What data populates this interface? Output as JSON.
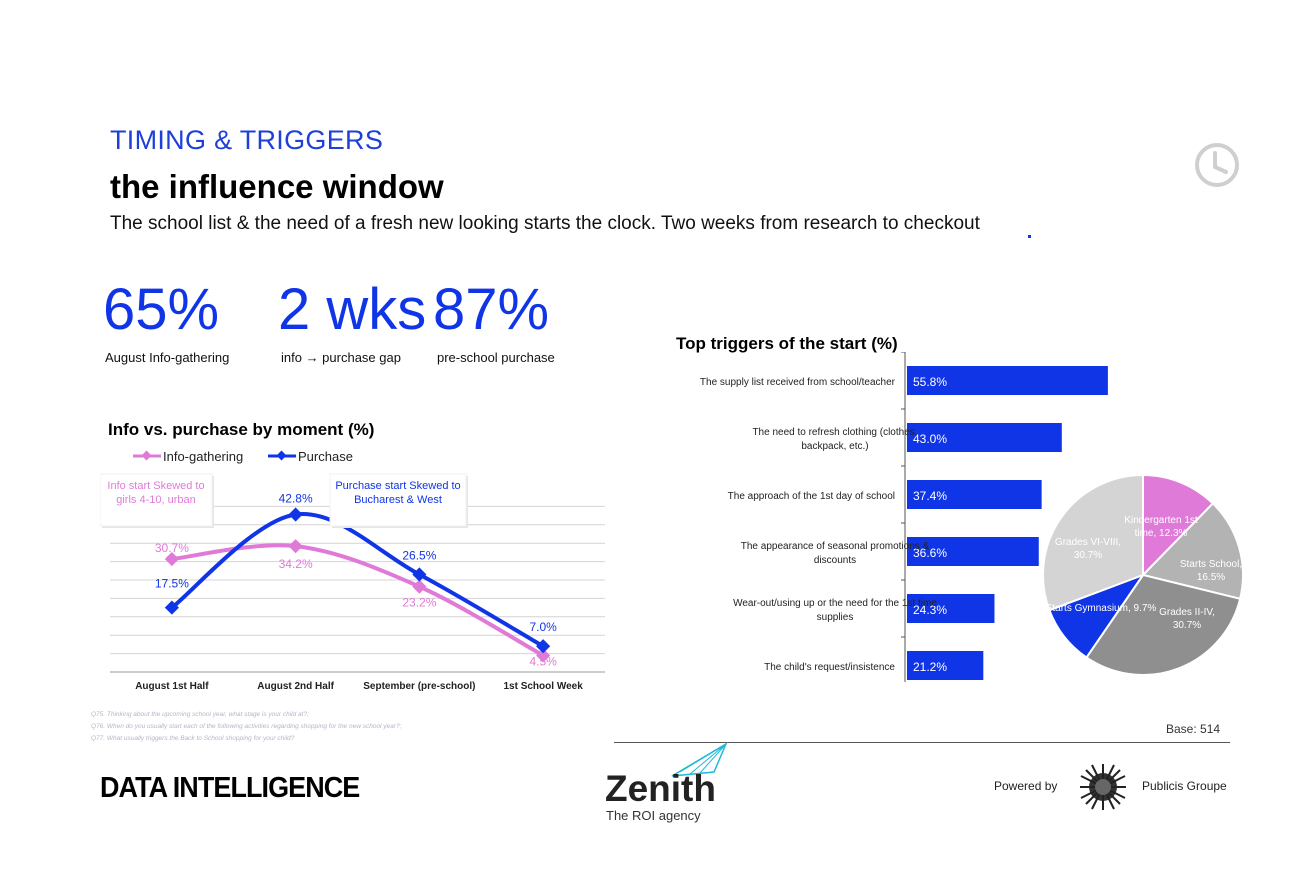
{
  "header": {
    "kicker": "TIMING & TRIGGERS",
    "title": "the influence window",
    "subtitle": "The school list & the need of a fresh new looking starts the clock. Two weeks from research to checkout",
    "clock_icon": "clock-icon",
    "accent_color": "#1e3fd8"
  },
  "kpis": [
    {
      "value": "65%",
      "label": "August Info-gathering"
    },
    {
      "value": "2 wks",
      "label": "info → purchase gap"
    },
    {
      "value": "87%",
      "label": "pre-school purchase"
    }
  ],
  "line_annotations": [
    "Info start Skewed to girls 4-10, urban",
    "Purchase start Skewed to Bucharest & West"
  ],
  "chart_data": [
    {
      "type": "line",
      "title": "Info vs. purchase by moment (%)",
      "categories": [
        "August 1st Half",
        "August 2nd Half",
        "September (pre-school)",
        "1st School Week"
      ],
      "series": [
        {
          "name": "Info-gathering",
          "color": "#e07ad9",
          "values": [
            30.7,
            34.2,
            23.2,
            4.5
          ],
          "labels": [
            "30.7%",
            "34.2%",
            "23.2%",
            "4.5%"
          ]
        },
        {
          "name": "Purchase",
          "color": "#1035e6",
          "values": [
            17.5,
            42.8,
            26.5,
            7.0
          ],
          "labels": [
            "17.5%",
            "42.8%",
            "26.5%",
            "7.0%"
          ]
        }
      ],
      "ylim": [
        0,
        50
      ],
      "grid": true,
      "legend": "top-left"
    },
    {
      "type": "bar",
      "orientation": "horizontal",
      "title": "Top triggers of the start (%)",
      "categories": [
        "The supply list received from school/teacher",
        "The need to refresh clothing (clothes, backpack, etc.)",
        "The approach of the 1st day of school",
        "The appearance of seasonal promotions & discounts",
        "Wear-out/using up or the need for the 1st time supplies",
        "The child's request/insistence"
      ],
      "values": [
        55.8,
        43.0,
        37.4,
        36.6,
        24.3,
        21.2
      ],
      "labels": [
        "55.8%",
        "43.0%",
        "37.4%",
        "36.6%",
        "24.3%",
        "21.2%"
      ],
      "color": "#1035e6",
      "xlim": [
        0,
        100
      ]
    },
    {
      "type": "pie",
      "slices": [
        {
          "label": "Kindergarten 1st time, 12.3%",
          "value": 12.3,
          "color": "#e07ad9"
        },
        {
          "label": "Starts School, 16.5%",
          "value": 16.5,
          "color": "#b3b3b3"
        },
        {
          "label": "Grades II-IV, 30.7%",
          "value": 30.7,
          "color": "#8f8f8f"
        },
        {
          "label": "Starts Gymnasium, 9.7%",
          "value": 9.7,
          "color": "#1035e6"
        },
        {
          "label": "Grades VI-VIII, 30.7%",
          "value": 30.7,
          "color": "#d4d4d4"
        }
      ]
    }
  ],
  "footnotes": [
    "Q75. Thinking about the upcoming school year, what stage is your child at?;",
    "Q76. When do you usually start each of the following activities regarding shopping for the new school year?;",
    "Q77. What usually triggers the Back to School shopping for your child?"
  ],
  "base_note": "Base: 514",
  "footer": {
    "brand_left": "DATA INTELLIGENCE",
    "zenith": "Zenith",
    "zenith_tagline": "The ROI agency",
    "powered_by": "Powered by",
    "publicis": "Publicis Groupe"
  }
}
